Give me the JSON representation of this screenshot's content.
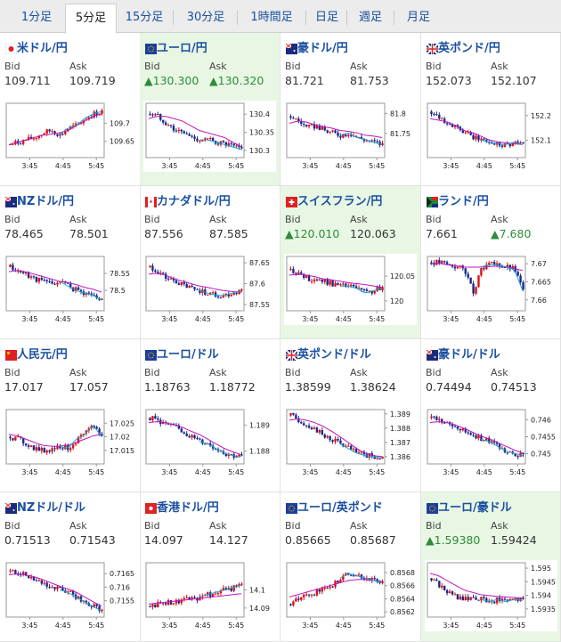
{
  "tabs": [
    {
      "label": "1分足",
      "active": false
    },
    {
      "label": "5分足",
      "active": true
    },
    {
      "label": "15分足",
      "active": false
    },
    {
      "label": "30分足",
      "active": false
    },
    {
      "label": "1時間足",
      "active": false
    },
    {
      "label": "日足",
      "active": false
    },
    {
      "label": "週足",
      "active": false
    },
    {
      "label": "月足",
      "active": false
    }
  ],
  "labels": {
    "bid": "Bid",
    "ask": "Ask"
  },
  "colors": {
    "link": "#1a4fa0",
    "up": "#2e8b3a",
    "candle_up": "#e01010",
    "candle_down": "#1a2a8a",
    "ma": "#c014c0",
    "highlight": "#e8f7e4"
  },
  "pairs": [
    {
      "name": "米ドル/円",
      "flag": "jp",
      "bid": "109.711",
      "ask": "109.719",
      "bid_up": false,
      "ask_up": false,
      "highlight": false,
      "chart_data": {
        "type": "candlestick",
        "x_ticks": [
          "3:45",
          "4:45",
          "5:45"
        ],
        "y_ticks": [
          109.7,
          109.65
        ],
        "ylim": [
          109.605,
          109.755
        ],
        "trend": [
          0.2,
          0.25,
          0.3,
          0.35,
          0.45,
          0.5,
          0.4,
          0.55,
          0.6,
          0.75,
          0.85,
          0.9
        ],
        "ma": [
          0.2,
          0.25,
          0.3,
          0.35,
          0.4,
          0.42,
          0.45,
          0.5,
          0.6,
          0.7,
          0.8,
          0.85
        ]
      }
    },
    {
      "name": "ユーロ/円",
      "flag": "eu",
      "bid": "▲130.300",
      "ask": "▲130.320",
      "bid_up": true,
      "ask_up": true,
      "highlight": true,
      "chart_data": {
        "type": "candlestick",
        "x_ticks": [
          "3:45",
          "4:45",
          "5:45"
        ],
        "y_ticks": [
          130.4,
          130.35,
          130.3
        ],
        "ylim": [
          130.28,
          130.43
        ],
        "trend": [
          0.85,
          0.8,
          0.65,
          0.5,
          0.45,
          0.35,
          0.3,
          0.3,
          0.25,
          0.2,
          0.15,
          0.1
        ],
        "ma": [
          0.75,
          0.8,
          0.8,
          0.75,
          0.7,
          0.6,
          0.5,
          0.45,
          0.4,
          0.35,
          0.25,
          0.15
        ]
      }
    },
    {
      "name": "豪ドル/円",
      "flag": "au",
      "bid": "81.721",
      "ask": "81.753",
      "bid_up": false,
      "ask_up": false,
      "highlight": false,
      "chart_data": {
        "type": "candlestick",
        "x_ticks": [
          "3:45",
          "4:45",
          "5:45"
        ],
        "y_ticks": [
          81.8,
          81.75
        ],
        "ylim": [
          81.69,
          81.825
        ],
        "trend": [
          0.8,
          0.7,
          0.55,
          0.6,
          0.5,
          0.45,
          0.4,
          0.45,
          0.35,
          0.3,
          0.25,
          0.2
        ],
        "ma": [
          0.65,
          0.7,
          0.68,
          0.62,
          0.58,
          0.55,
          0.5,
          0.48,
          0.45,
          0.4,
          0.38,
          0.35
        ]
      }
    },
    {
      "name": "英ポンド/円",
      "flag": "gb",
      "bid": "152.073",
      "ask": "152.107",
      "bid_up": false,
      "ask_up": false,
      "highlight": false,
      "chart_data": {
        "type": "candlestick",
        "x_ticks": [
          "3:45",
          "4:45",
          "5:45"
        ],
        "y_ticks": [
          152.2,
          152.1
        ],
        "ylim": [
          152.03,
          152.25
        ],
        "trend": [
          0.9,
          0.8,
          0.65,
          0.55,
          0.45,
          0.35,
          0.3,
          0.25,
          0.22,
          0.2,
          0.25,
          0.2
        ],
        "ma": [
          0.75,
          0.72,
          0.68,
          0.6,
          0.5,
          0.45,
          0.38,
          0.3,
          0.26,
          0.24,
          0.22,
          0.2
        ]
      }
    },
    {
      "name": "NZドル/円",
      "flag": "nz",
      "bid": "78.465",
      "ask": "78.501",
      "bid_up": false,
      "ask_up": false,
      "highlight": false,
      "chart_data": {
        "type": "candlestick",
        "x_ticks": [
          "3:45",
          "4:45",
          "5:45"
        ],
        "y_ticks": [
          78.55,
          78.5
        ],
        "ylim": [
          78.44,
          78.6
        ],
        "trend": [
          0.85,
          0.75,
          0.7,
          0.6,
          0.55,
          0.5,
          0.55,
          0.45,
          0.35,
          0.3,
          0.25,
          0.15
        ],
        "ma": [
          0.75,
          0.78,
          0.75,
          0.7,
          0.65,
          0.6,
          0.55,
          0.52,
          0.48,
          0.42,
          0.38,
          0.32
        ]
      }
    },
    {
      "name": "カナダドル/円",
      "flag": "ca",
      "bid": "87.556",
      "ask": "87.585",
      "bid_up": false,
      "ask_up": false,
      "highlight": false,
      "chart_data": {
        "type": "candlestick",
        "x_ticks": [
          "3:45",
          "4:45",
          "5:45"
        ],
        "y_ticks": [
          87.65,
          87.6,
          87.55
        ],
        "ylim": [
          87.535,
          87.665
        ],
        "trend": [
          0.85,
          0.75,
          0.6,
          0.55,
          0.45,
          0.4,
          0.35,
          0.3,
          0.25,
          0.25,
          0.3,
          0.35
        ],
        "ma": [
          0.7,
          0.72,
          0.68,
          0.6,
          0.55,
          0.5,
          0.45,
          0.42,
          0.38,
          0.35,
          0.33,
          0.32
        ]
      }
    },
    {
      "name": "スイスフラン/円",
      "flag": "ch",
      "bid": "▲120.010",
      "ask": "120.063",
      "bid_up": true,
      "ask_up": false,
      "highlight": true,
      "chart_data": {
        "type": "candlestick",
        "x_ticks": [
          "3:45",
          "4:45",
          "5:45"
        ],
        "y_ticks": [
          120.05,
          120
        ],
        "ylim": [
          119.98,
          120.09
        ],
        "trend": [
          0.8,
          0.7,
          0.6,
          0.6,
          0.55,
          0.5,
          0.45,
          0.45,
          0.4,
          0.3,
          0.35,
          0.4
        ],
        "ma": [
          0.68,
          0.7,
          0.68,
          0.65,
          0.6,
          0.58,
          0.55,
          0.52,
          0.5,
          0.48,
          0.45,
          0.42
        ]
      }
    },
    {
      "name": "ランド/円",
      "flag": "za",
      "bid": "7.661",
      "ask": "▲7.680",
      "bid_up": false,
      "ask_up": true,
      "highlight": false,
      "chart_data": {
        "type": "candlestick",
        "x_ticks": [
          "3:45",
          "4:45",
          "5:45"
        ],
        "y_ticks": [
          7.67,
          7.665,
          7.66
        ],
        "ylim": [
          7.657,
          7.672
        ],
        "trend": [
          0.95,
          0.95,
          0.9,
          0.85,
          0.8,
          0.3,
          0.85,
          0.9,
          0.9,
          0.85,
          0.8,
          0.35
        ],
        "ma": [
          0.92,
          0.93,
          0.9,
          0.88,
          0.85,
          0.85,
          0.85,
          0.86,
          0.87,
          0.86,
          0.82,
          0.78
        ]
      }
    },
    {
      "name": "人民元/円",
      "flag": "cn",
      "bid": "17.017",
      "ask": "17.057",
      "bid_up": false,
      "ask_up": false,
      "highlight": false,
      "chart_data": {
        "type": "candlestick",
        "x_ticks": [
          "3:45",
          "4:45",
          "5:45"
        ],
        "y_ticks": [
          17.025,
          17.02,
          17.015
        ],
        "ylim": [
          17.01,
          17.03
        ],
        "trend": [
          0.5,
          0.45,
          0.35,
          0.25,
          0.2,
          0.25,
          0.3,
          0.25,
          0.45,
          0.55,
          0.75,
          0.5
        ],
        "ma": [
          0.55,
          0.52,
          0.45,
          0.38,
          0.32,
          0.3,
          0.3,
          0.32,
          0.38,
          0.45,
          0.52,
          0.55
        ]
      }
    },
    {
      "name": "ユーロ/ドル",
      "flag": "eu",
      "bid": "1.18763",
      "ask": "1.18772",
      "bid_up": false,
      "ask_up": false,
      "highlight": false,
      "chart_data": {
        "type": "candlestick",
        "x_ticks": [
          "3:45",
          "4:45",
          "5:45"
        ],
        "y_ticks": [
          1.189,
          1.188
        ],
        "ylim": [
          1.1875,
          1.1896
        ],
        "trend": [
          0.9,
          0.85,
          0.75,
          0.7,
          0.6,
          0.5,
          0.4,
          0.35,
          0.25,
          0.15,
          0.1,
          0.08
        ],
        "ma": [
          0.8,
          0.82,
          0.8,
          0.75,
          0.7,
          0.62,
          0.55,
          0.45,
          0.35,
          0.25,
          0.18,
          0.12
        ]
      }
    },
    {
      "name": "英ポンド/ドル",
      "flag": "gb",
      "bid": "1.38599",
      "ask": "1.38624",
      "bid_up": false,
      "ask_up": false,
      "highlight": false,
      "chart_data": {
        "type": "candlestick",
        "x_ticks": [
          "3:45",
          "4:45",
          "5:45"
        ],
        "y_ticks": [
          1.389,
          1.388,
          1.387,
          1.386
        ],
        "ylim": [
          1.3855,
          1.3893
        ],
        "trend": [
          0.95,
          0.85,
          0.75,
          0.65,
          0.5,
          0.45,
          0.35,
          0.25,
          0.15,
          0.1,
          0.08,
          0.05
        ],
        "ma": [
          0.85,
          0.88,
          0.85,
          0.8,
          0.72,
          0.62,
          0.5,
          0.38,
          0.25,
          0.15,
          0.1,
          0.08
        ]
      }
    },
    {
      "name": "豪ドル/ドル",
      "flag": "au",
      "bid": "0.74494",
      "ask": "0.74513",
      "bid_up": false,
      "ask_up": false,
      "highlight": false,
      "chart_data": {
        "type": "candlestick",
        "x_ticks": [
          "3:45",
          "4:45",
          "5:45"
        ],
        "y_ticks": [
          0.746,
          0.7455,
          0.745
        ],
        "ylim": [
          0.7447,
          0.7463
        ],
        "trend": [
          0.9,
          0.85,
          0.75,
          0.7,
          0.6,
          0.55,
          0.45,
          0.4,
          0.3,
          0.2,
          0.15,
          0.1
        ],
        "ma": [
          0.8,
          0.82,
          0.8,
          0.75,
          0.68,
          0.6,
          0.52,
          0.45,
          0.38,
          0.3,
          0.22,
          0.15
        ]
      }
    },
    {
      "name": "NZドル/ドル",
      "flag": "nz",
      "bid": "0.71513",
      "ask": "0.71543",
      "bid_up": false,
      "ask_up": false,
      "highlight": false,
      "chart_data": {
        "type": "candlestick",
        "x_ticks": [
          "3:45",
          "4:45",
          "5:45"
        ],
        "y_ticks": [
          0.7165,
          0.716,
          0.7155
        ],
        "ylim": [
          0.7149,
          0.7169
        ],
        "trend": [
          0.9,
          0.85,
          0.8,
          0.7,
          0.65,
          0.55,
          0.5,
          0.45,
          0.35,
          0.25,
          0.15,
          0.05
        ],
        "ma": [
          0.82,
          0.84,
          0.82,
          0.78,
          0.72,
          0.65,
          0.58,
          0.52,
          0.45,
          0.35,
          0.25,
          0.15
        ]
      }
    },
    {
      "name": "香港ドル/円",
      "flag": "hk",
      "bid": "14.097",
      "ask": "14.127",
      "bid_up": false,
      "ask_up": false,
      "highlight": false,
      "chart_data": {
        "type": "candlestick",
        "x_ticks": [
          "3:45",
          "4:45",
          "5:45"
        ],
        "y_ticks": [
          14.1,
          14.09
        ],
        "ylim": [
          14.085,
          14.115
        ],
        "trend": [
          0.15,
          0.2,
          0.25,
          0.25,
          0.3,
          0.3,
          0.35,
          0.4,
          0.45,
          0.5,
          0.55,
          0.6
        ],
        "ma": [
          0.2,
          0.22,
          0.24,
          0.26,
          0.28,
          0.3,
          0.32,
          0.34,
          0.36,
          0.38,
          0.4,
          0.42
        ]
      }
    },
    {
      "name": "ユーロ/英ポンド",
      "flag": "eu",
      "bid": "0.85665",
      "ask": "0.85687",
      "bid_up": false,
      "ask_up": false,
      "highlight": false,
      "chart_data": {
        "type": "candlestick",
        "x_ticks": [
          "3:45",
          "4:45",
          "5:45"
        ],
        "y_ticks": [
          0.8568,
          0.8566,
          0.8564,
          0.8562
        ],
        "ylim": [
          0.85612,
          0.85695
        ],
        "trend": [
          0.2,
          0.3,
          0.4,
          0.45,
          0.5,
          0.6,
          0.75,
          0.85,
          0.8,
          0.75,
          0.7,
          0.65
        ],
        "ma": [
          0.35,
          0.4,
          0.45,
          0.5,
          0.55,
          0.6,
          0.65,
          0.7,
          0.72,
          0.72,
          0.7,
          0.68
        ]
      }
    },
    {
      "name": "ユーロ/豪ドル",
      "flag": "eu",
      "bid": "▲1.59380",
      "ask": "1.59424",
      "bid_up": true,
      "ask_up": false,
      "highlight": true,
      "chart_data": {
        "type": "candlestick",
        "x_ticks": [
          "3:45",
          "4:45",
          "5:45"
        ],
        "y_ticks": [
          1.595,
          1.5945,
          1.594,
          1.5935
        ],
        "ylim": [
          1.5932,
          1.5952
        ],
        "trend": [
          0.75,
          0.6,
          0.45,
          0.35,
          0.3,
          0.35,
          0.3,
          0.25,
          0.3,
          0.25,
          0.3,
          0.28
        ],
        "ma": [
          0.85,
          0.8,
          0.7,
          0.6,
          0.5,
          0.45,
          0.4,
          0.38,
          0.36,
          0.35,
          0.34,
          0.33
        ]
      }
    }
  ]
}
